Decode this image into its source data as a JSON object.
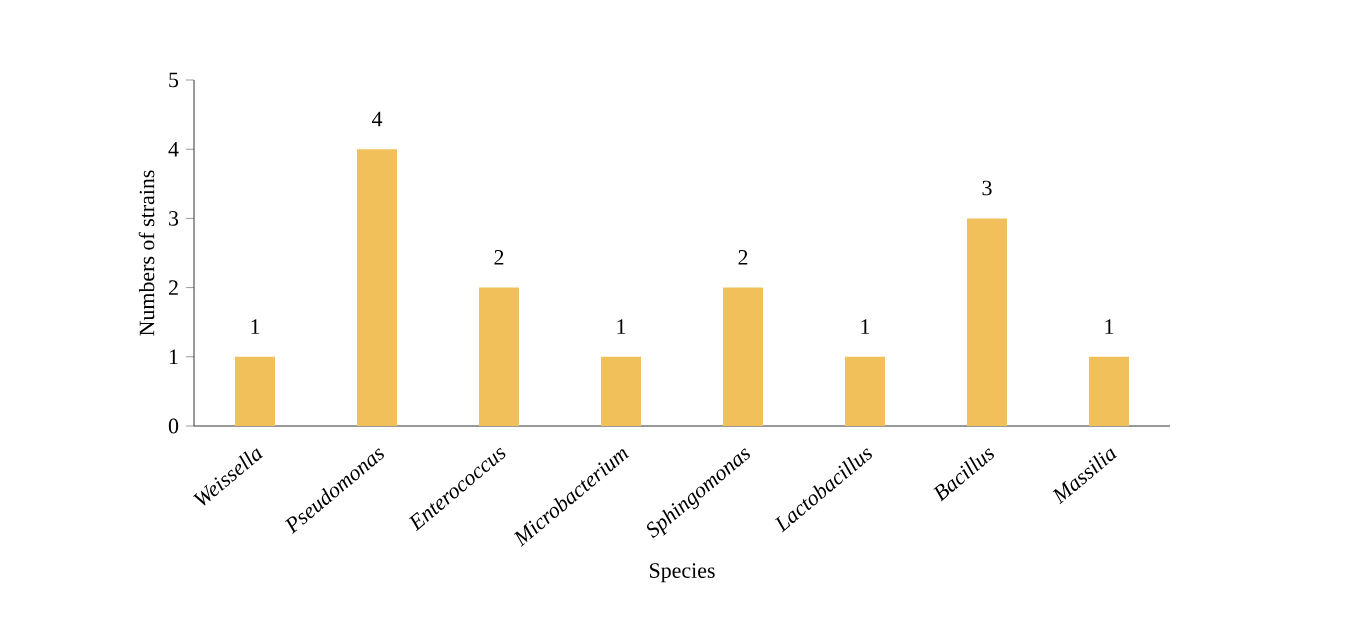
{
  "chart_data": {
    "type": "bar",
    "categories": [
      "Weissella",
      "Pseudomonas",
      "Enterococcus",
      "Microbacterium",
      "Sphingomonas",
      "Lactobacillus",
      "Bacillus",
      "Massilia"
    ],
    "values": [
      1,
      4,
      2,
      1,
      2,
      1,
      3,
      1
    ],
    "color": "#f2c05a",
    "xlabel": "Species",
    "ylabel": "Numbers of strains",
    "ylim": [
      0,
      5
    ],
    "yticks": [
      0,
      1,
      2,
      3,
      4,
      5
    ],
    "data_labels": true
  }
}
